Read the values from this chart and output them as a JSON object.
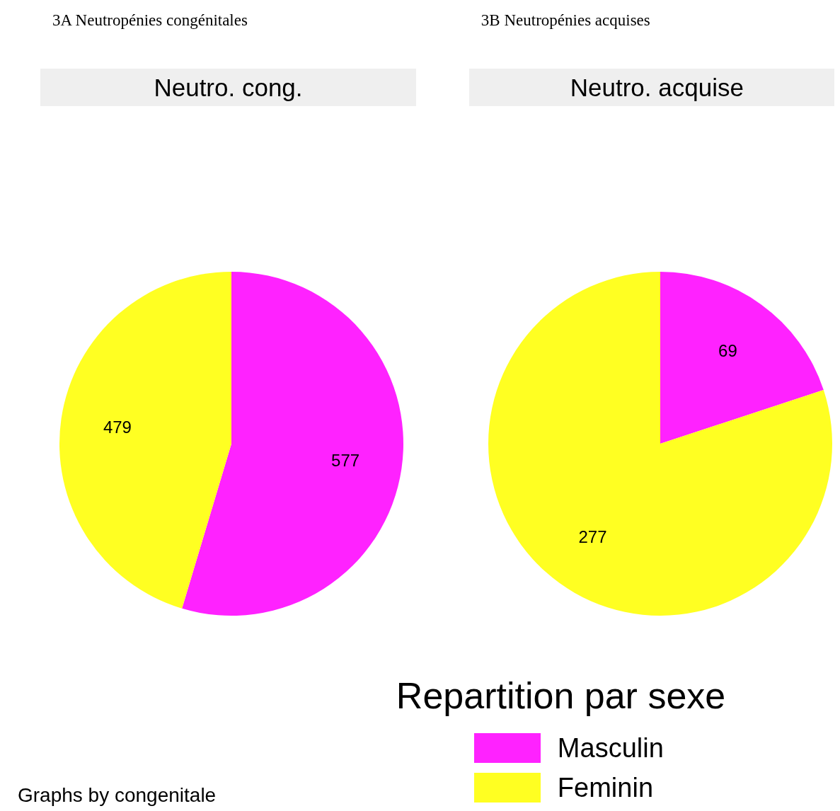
{
  "chart_data": [
    {
      "type": "pie",
      "title": "3A Neutropénies congénitales",
      "subtitle": "Neutro. cong.",
      "categories": [
        null,
        null
      ],
      "values": [
        577,
        479
      ],
      "colors": [
        "#ff22ff",
        "#ffff22"
      ],
      "data_labels": true,
      "annotations": [
        "Graphs by congenitale"
      ]
    },
    {
      "type": "pie",
      "title": "3B Neutropénies acquises",
      "subtitle": "Neutro. acquise",
      "categories": [
        "Masculin",
        "Feminin"
      ],
      "values": [
        69,
        277
      ],
      "colors": [
        "#ff22ff",
        "#ffff22"
      ],
      "data_labels": true,
      "legend": "bottom",
      "legend_title": "Repartition par sexe"
    }
  ]
}
